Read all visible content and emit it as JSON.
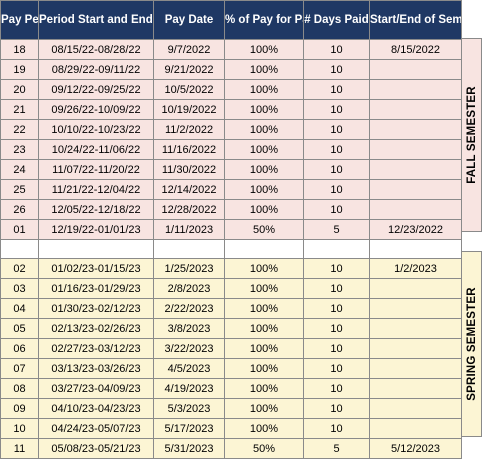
{
  "headers": [
    "Pay Period",
    "Period Start and End Date",
    "Pay Date",
    "% of Pay for Pay Period",
    "# Days Paid",
    "Start/End of Semester Dates"
  ],
  "fall_label": "FALL SEMESTER",
  "spring_label": "SPRING SEMESTER",
  "fall_rows": [
    [
      "18",
      "08/15/22-08/28/22",
      "9/7/2022",
      "100%",
      "10",
      "8/15/2022"
    ],
    [
      "19",
      "08/29/22-09/11/22",
      "9/21/2022",
      "100%",
      "10",
      ""
    ],
    [
      "20",
      "09/12/22-09/25/22",
      "10/5/2022",
      "100%",
      "10",
      ""
    ],
    [
      "21",
      "09/26/22-10/09/22",
      "10/19/2022",
      "100%",
      "10",
      ""
    ],
    [
      "22",
      "10/10/22-10/23/22",
      "11/2/2022",
      "100%",
      "10",
      ""
    ],
    [
      "23",
      "10/24/22-11/06/22",
      "11/16/2022",
      "100%",
      "10",
      ""
    ],
    [
      "24",
      "11/07/22-11/20/22",
      "11/30/2022",
      "100%",
      "10",
      ""
    ],
    [
      "25",
      "11/21/22-12/04/22",
      "12/14/2022",
      "100%",
      "10",
      ""
    ],
    [
      "26",
      "12/05/22-12/18/22",
      "12/28/2022",
      "100%",
      "10",
      ""
    ],
    [
      "01",
      "12/19/22-01/01/23",
      "1/11/2023",
      "50%",
      "5",
      "12/23/2022"
    ]
  ],
  "spring_rows": [
    [
      "02",
      "01/02/23-01/15/23",
      "1/25/2023",
      "100%",
      "10",
      "1/2/2023"
    ],
    [
      "03",
      "01/16/23-01/29/23",
      "2/8/2023",
      "100%",
      "10",
      ""
    ],
    [
      "04",
      "01/30/23-02/12/23",
      "2/22/2023",
      "100%",
      "10",
      ""
    ],
    [
      "05",
      "02/13/23-02/26/23",
      "3/8/2023",
      "100%",
      "10",
      ""
    ],
    [
      "06",
      "02/27/23-03/12/23",
      "3/22/2023",
      "100%",
      "10",
      ""
    ],
    [
      "07",
      "03/13/23-03/26/23",
      "4/5/2023",
      "100%",
      "10",
      ""
    ],
    [
      "08",
      "03/27/23-04/09/23",
      "4/19/2023",
      "100%",
      "10",
      ""
    ],
    [
      "09",
      "04/10/23-04/23/23",
      "5/3/2023",
      "100%",
      "10",
      ""
    ],
    [
      "10",
      "04/24/23-05/07/23",
      "5/17/2023",
      "100%",
      "10",
      ""
    ],
    [
      "11",
      "05/08/23-05/21/23",
      "5/31/2023",
      "50%",
      "5",
      "5/12/2023"
    ]
  ]
}
